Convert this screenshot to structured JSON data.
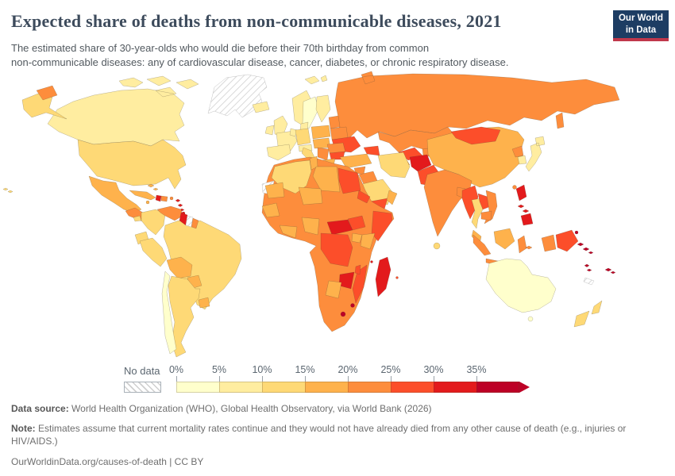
{
  "header": {
    "title": "Expected share of deaths from non-communicable diseases, 2021",
    "subtitle_line1": "The estimated share of 30-year-olds who would die before their 70th birthday from common",
    "subtitle_line2": "non-communicable diseases: any of cardiovascular disease, cancer, diabetes, or chronic respiratory disease.",
    "logo": {
      "line1": "Our World",
      "line2": "in Data",
      "bg_color": "#1d3d63",
      "stripe_color": "#c0384b"
    }
  },
  "footer": {
    "source_label": "Data source:",
    "source_text": " World Health Organization (WHO), Global Health Observatory, via World Bank (2026)",
    "note_label": "Note:",
    "note_text": " Estimates assume that current mortality rates continue and they would not have already died from any other cause of death (e.g., injuries or HIV/AIDS.)",
    "url_text": "OurWorldinData.org/causes-of-death | CC BY"
  },
  "chart_data": {
    "type": "heatmap",
    "subtype": "choropleth-world-map",
    "title": "Expected share of deaths from non-communicable diseases, 2021",
    "unit": "%",
    "legend": {
      "no_data_label": "No data",
      "bin_edge_labels": [
        "0%",
        "5%",
        "10%",
        "15%",
        "20%",
        "25%",
        "30%",
        "35%"
      ],
      "bin_ranges": [
        "0-5%",
        "5-10%",
        "10-15%",
        "15-20%",
        "20-25%",
        "25-30%",
        "30-35%",
        ">35%"
      ],
      "colors": [
        "#ffffcc",
        "#ffeda0",
        "#fed976",
        "#feb24c",
        "#fd8d3c",
        "#fc4e2a",
        "#e31a1c",
        "#bd0026"
      ],
      "position": "bottom-left"
    },
    "countries": [
      {
        "name": "greenland",
        "bin": null
      },
      {
        "name": "svalbard",
        "bin": 1
      },
      {
        "name": "canada",
        "bin": 1
      },
      {
        "name": "alaska",
        "bin": 2
      },
      {
        "name": "chukotka",
        "bin": 4
      },
      {
        "name": "usa",
        "bin": 2
      },
      {
        "name": "mexico",
        "bin": 3
      },
      {
        "name": "central-america",
        "bin": 4
      },
      {
        "name": "costa-rica",
        "bin": 2
      },
      {
        "name": "cuba",
        "bin": 3
      },
      {
        "name": "haiti",
        "bin": 6
      },
      {
        "name": "dominican-republic",
        "bin": 4
      },
      {
        "name": "bahamas",
        "bin": 3
      },
      {
        "name": "jamaica",
        "bin": 3
      },
      {
        "name": "puerto-rico",
        "bin": 4
      },
      {
        "name": "lesser-antilles",
        "bin": 6
      },
      {
        "name": "trinidad",
        "bin": 6
      },
      {
        "name": "hawaii",
        "bin": 2
      },
      {
        "name": "brazil",
        "bin": 2
      },
      {
        "name": "colombia",
        "bin": 2
      },
      {
        "name": "venezuela",
        "bin": 4
      },
      {
        "name": "guyana",
        "bin": 6
      },
      {
        "name": "suriname",
        "bin": null
      },
      {
        "name": "french-guiana",
        "bin": 4
      },
      {
        "name": "ecuador",
        "bin": 2
      },
      {
        "name": "peru",
        "bin": 2
      },
      {
        "name": "bolivia",
        "bin": 3
      },
      {
        "name": "paraguay",
        "bin": 3
      },
      {
        "name": "uruguay",
        "bin": 3
      },
      {
        "name": "argentina",
        "bin": 2
      },
      {
        "name": "chile",
        "bin": 0
      },
      {
        "name": "russia",
        "bin": 4
      },
      {
        "name": "iceland",
        "bin": 1
      },
      {
        "name": "norway",
        "bin": 1
      },
      {
        "name": "sweden",
        "bin": 0
      },
      {
        "name": "finland",
        "bin": 1
      },
      {
        "name": "denmark",
        "bin": 1
      },
      {
        "name": "uk",
        "bin": 1
      },
      {
        "name": "ireland",
        "bin": 1
      },
      {
        "name": "france",
        "bin": 1
      },
      {
        "name": "benelux",
        "bin": 1
      },
      {
        "name": "germany",
        "bin": 2
      },
      {
        "name": "poland",
        "bin": 3
      },
      {
        "name": "baltics",
        "bin": 4
      },
      {
        "name": "belarus",
        "bin": 4
      },
      {
        "name": "ukraine",
        "bin": 5
      },
      {
        "name": "czech-hungary",
        "bin": 3
      },
      {
        "name": "alpine",
        "bin": 1
      },
      {
        "name": "italy",
        "bin": 2
      },
      {
        "name": "romania",
        "bin": 4
      },
      {
        "name": "bulgaria",
        "bin": 5
      },
      {
        "name": "balkans",
        "bin": 4
      },
      {
        "name": "greece",
        "bin": 3
      },
      {
        "name": "spain",
        "bin": 1
      },
      {
        "name": "kazakhstan",
        "bin": 4
      },
      {
        "name": "uzbekistan",
        "bin": 5
      },
      {
        "name": "turkmenistan",
        "bin": 4
      },
      {
        "name": "kyrgyz-tajik",
        "bin": 4
      },
      {
        "name": "caucasus",
        "bin": 5
      },
      {
        "name": "turkey",
        "bin": 3
      },
      {
        "name": "syria",
        "bin": 4
      },
      {
        "name": "iraq",
        "bin": 4
      },
      {
        "name": "jordan-israel",
        "bin": 2
      },
      {
        "name": "saudi-arabia",
        "bin": 2
      },
      {
        "name": "yemen",
        "bin": 5
      },
      {
        "name": "oman",
        "bin": 3
      },
      {
        "name": "iran",
        "bin": 2
      },
      {
        "name": "africa-base",
        "bin": 4
      },
      {
        "name": "western-sahara",
        "bin": null
      },
      {
        "name": "algeria",
        "bin": 2
      },
      {
        "name": "tunisia",
        "bin": 3
      },
      {
        "name": "libya",
        "bin": 3
      },
      {
        "name": "egypt",
        "bin": 5
      },
      {
        "name": "mauritania",
        "bin": 3
      },
      {
        "name": "niger",
        "bin": 3
      },
      {
        "name": "senegal-guinea",
        "bin": 3
      },
      {
        "name": "ivory-coast-ghana",
        "bin": 3
      },
      {
        "name": "nigeria",
        "bin": 3
      },
      {
        "name": "central-african-republic",
        "bin": 6
      },
      {
        "name": "south-sudan",
        "bin": 5
      },
      {
        "name": "eritrea",
        "bin": 5
      },
      {
        "name": "somalia",
        "bin": 5
      },
      {
        "name": "kenya",
        "bin": 3
      },
      {
        "name": "uganda",
        "bin": 3
      },
      {
        "name": "drc",
        "bin": 5
      },
      {
        "name": "mozambique",
        "bin": 5
      },
      {
        "name": "malawi",
        "bin": 5
      },
      {
        "name": "zimbabwe",
        "bin": 6
      },
      {
        "name": "botswana",
        "bin": 3
      },
      {
        "name": "madagascar",
        "bin": 6
      },
      {
        "name": "lesotho",
        "bin": 7
      },
      {
        "name": "eswatini",
        "bin": 7
      },
      {
        "name": "comoros",
        "bin": 6
      },
      {
        "name": "mauritius",
        "bin": 5
      },
      {
        "name": "china",
        "bin": 3
      },
      {
        "name": "mongolia",
        "bin": 5
      },
      {
        "name": "north-korea",
        "bin": 4
      },
      {
        "name": "south-korea",
        "bin": 1
      },
      {
        "name": "japan",
        "bin": 1
      },
      {
        "name": "taiwan",
        "bin": 4
      },
      {
        "name": "afghanistan",
        "bin": 6
      },
      {
        "name": "pakistan",
        "bin": 5
      },
      {
        "name": "india",
        "bin": 4
      },
      {
        "name": "bangladesh",
        "bin": 4
      },
      {
        "name": "sri-lanka",
        "bin": 2
      },
      {
        "name": "myanmar",
        "bin": 5
      },
      {
        "name": "thailand",
        "bin": 2
      },
      {
        "name": "laos",
        "bin": 5
      },
      {
        "name": "vietnam",
        "bin": 4
      },
      {
        "name": "cambodia",
        "bin": 4
      },
      {
        "name": "malaysia",
        "bin": 3
      },
      {
        "name": "borneo",
        "bin": 3
      },
      {
        "name": "indonesia",
        "bin": 4
      },
      {
        "name": "philippines",
        "bin": 6
      },
      {
        "name": "papua-new-guinea",
        "bin": 5
      },
      {
        "name": "new-britain",
        "bin": 7
      },
      {
        "name": "solomon-islands",
        "bin": 7
      },
      {
        "name": "vanuatu",
        "bin": 7
      },
      {
        "name": "fiji",
        "bin": 7
      },
      {
        "name": "new-caledonia",
        "bin": null
      },
      {
        "name": "australia",
        "bin": 0
      },
      {
        "name": "tasmania",
        "bin": 0
      },
      {
        "name": "new-zealand",
        "bin": 2
      }
    ]
  }
}
